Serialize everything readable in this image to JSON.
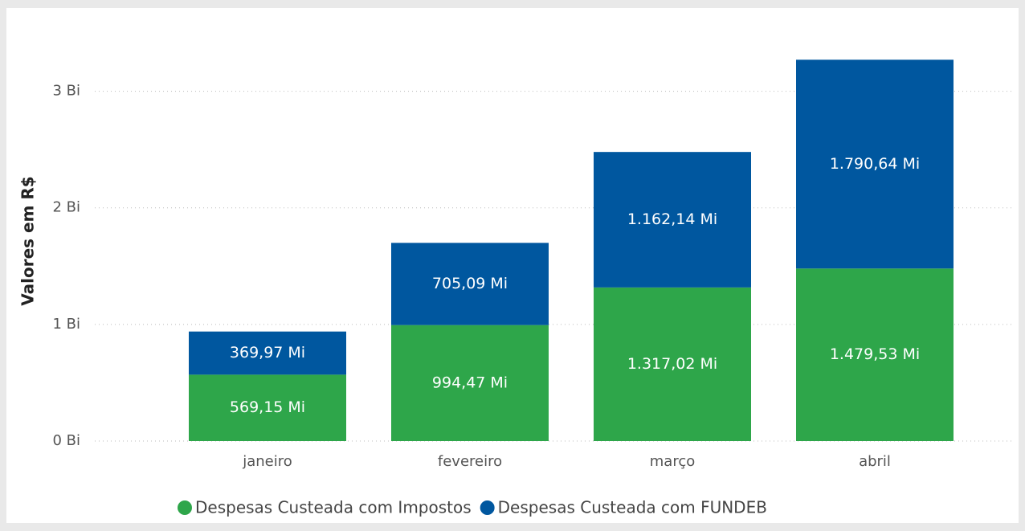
{
  "chart_data": {
    "type": "stacked_bar",
    "y_label": "Valores em R$",
    "categories": [
      "janeiro",
      "fevereiro",
      "março",
      "abril"
    ],
    "series": [
      {
        "name": "Despesas Custeada com Impostos",
        "color": "#2ea64a",
        "values": [
          569150000,
          994470000,
          1317020000,
          1479530000
        ],
        "value_labels": [
          "569,15 Mi",
          "994,47 Mi",
          "1.317,02 Mi",
          "1.479,53 Mi"
        ]
      },
      {
        "name": "Despesas Custeada com FUNDEB",
        "color": "#00579f",
        "values": [
          369970000,
          705090000,
          1162140000,
          1790640000
        ],
        "value_labels": [
          "369,97 Mi",
          "705,09 Mi",
          "1.162,14 Mi",
          "1.790,64 Mi"
        ]
      }
    ],
    "ylim": [
      0,
      3500000000
    ],
    "yticks": [
      {
        "value": 0,
        "label": "0 Bi"
      },
      {
        "value": 1000000000,
        "label": "1 Bi"
      },
      {
        "value": 2000000000,
        "label": "2 Bi"
      },
      {
        "value": 3000000000,
        "label": "3 Bi"
      }
    ],
    "grid": true
  }
}
